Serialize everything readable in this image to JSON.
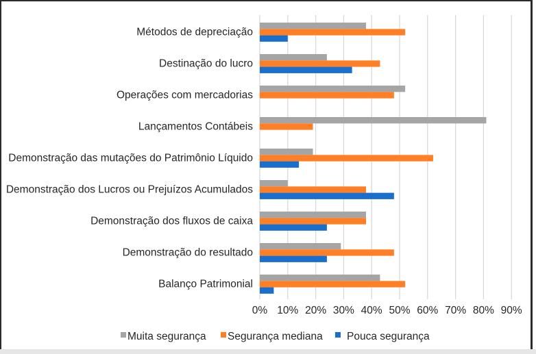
{
  "chart_data": {
    "type": "bar",
    "orientation": "horizontal",
    "title": "",
    "xlabel": "",
    "ylabel": "",
    "categories": [
      "Métodos de depreciação",
      "Destinação do lucro",
      "Operações com mercadorias",
      "Lançamentos Contábeis",
      "Demonstração das mutações do Patrimônio Líquido",
      "Demonstração dos Lucros ou Prejuízos Acumulados",
      "Demonstração dos fluxos de caixa",
      "Demonstração do resultado",
      "Balanço Patrimonial"
    ],
    "series": [
      {
        "name": "Muita segurança",
        "color": "#A5A5A5",
        "values": [
          38,
          24,
          52,
          81,
          19,
          10,
          38,
          29,
          43
        ]
      },
      {
        "name": "Segurança mediana",
        "color": "#FF7F27",
        "values": [
          52,
          43,
          48,
          19,
          62,
          38,
          38,
          48,
          52
        ]
      },
      {
        "name": "Pouca segurança",
        "color": "#1A6FCC",
        "values": [
          10,
          33,
          0,
          0,
          14,
          48,
          24,
          24,
          5
        ]
      }
    ],
    "xlim": [
      0,
      90
    ],
    "x_ticks": [
      "0%",
      "10%",
      "20%",
      "30%",
      "40%",
      "50%",
      "60%",
      "70%",
      "80%",
      "90%"
    ],
    "unit": "%",
    "grid": "vertical",
    "legend_position": "bottom"
  }
}
